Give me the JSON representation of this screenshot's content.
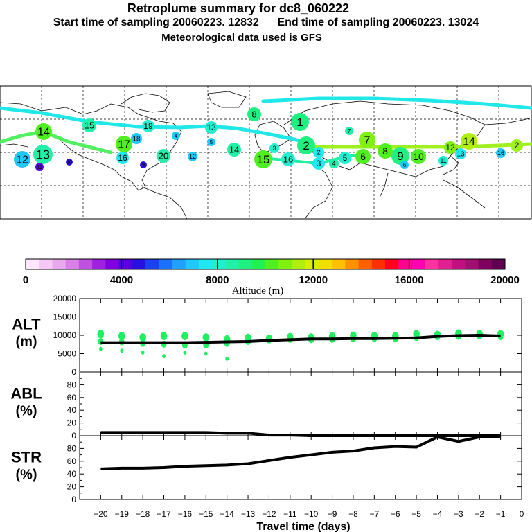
{
  "header": {
    "title": "Retroplume summary for dc8_060222",
    "subtitle": "Start time of sampling 20060223. 12832      End time of sampling 20060223. 13024",
    "met_line": "Meteorological data used is GFS"
  },
  "colorbar": {
    "label": "Altitude (m)",
    "ticks": [
      "0",
      "4000",
      "8000",
      "12000",
      "16000",
      "20000"
    ],
    "colors": [
      "#ffe6ff",
      "#f5c8f5",
      "#e8a8ee",
      "#d880e8",
      "#c050e0",
      "#a020e0",
      "#7f00e0",
      "#5a00e0",
      "#2a10e0",
      "#1a40f0",
      "#1a70ff",
      "#20a0ff",
      "#20c8ff",
      "#20e8f0",
      "#20f0d0",
      "#20f0a8",
      "#20f080",
      "#20f050",
      "#50f020",
      "#80f010",
      "#b0f010",
      "#d8f000",
      "#f0e000",
      "#ffc000",
      "#ff9000",
      "#ff6000",
      "#ff3000",
      "#ff0020",
      "#ff0090",
      "#ff00b0",
      "#ff30a0",
      "#e02090",
      "#c01080",
      "#a01070",
      "#800060",
      "#600050"
    ]
  },
  "map": {
    "trajectory_colors": [
      "#20e8e8",
      "#50f060",
      "#20f0a0",
      "#a0f020"
    ],
    "markers": [
      "2",
      "16",
      "14",
      "13",
      "12",
      "11",
      "10",
      "9",
      "8",
      "7",
      "6",
      "5",
      "4",
      "3",
      "2",
      "1",
      "16",
      "15",
      "14",
      "13",
      "12",
      "20",
      "19",
      "18",
      "17",
      "16",
      "15",
      "14",
      "13",
      "12",
      "11",
      "10",
      "9",
      "8",
      "7",
      "6",
      "5",
      "4",
      "3",
      "2",
      "1",
      "20",
      "10",
      "9",
      "8",
      "7",
      "6",
      "5",
      "4",
      "3",
      "2"
    ]
  },
  "chart_data": [
    {
      "type": "line",
      "panel": "ALT",
      "ylabel_lines": [
        "ALT",
        "(m)"
      ],
      "ylim": [
        0,
        20000
      ],
      "yticks": [
        "20000",
        "15000",
        "10000",
        "5000",
        "0"
      ],
      "x": [
        -20,
        -19,
        -18,
        -17,
        -16,
        -15,
        -14,
        -13,
        -12,
        -11,
        -10,
        -9,
        -8,
        -7,
        -6,
        -5,
        -4,
        -3,
        -2,
        -1
      ],
      "median": [
        8000,
        8000,
        8000,
        8000,
        8000,
        8100,
        8200,
        8300,
        8600,
        8800,
        9000,
        9000,
        9100,
        9100,
        9200,
        9300,
        9700,
        9900,
        10000,
        9800
      ],
      "point_color": "#20f060",
      "scatter": [
        {
          "x": -20,
          "y": [
            10300,
            8300,
            6300
          ]
        },
        {
          "x": -19,
          "y": [
            9800,
            8200,
            5800
          ]
        },
        {
          "x": -18,
          "y": [
            9400,
            7800,
            5300
          ]
        },
        {
          "x": -17,
          "y": [
            9800,
            7600,
            4300
          ]
        },
        {
          "x": -16,
          "y": [
            9800,
            7300,
            5300
          ]
        },
        {
          "x": -15,
          "y": [
            9400,
            7300,
            5000
          ]
        },
        {
          "x": -14,
          "y": [
            8900,
            7800,
            3600
          ]
        },
        {
          "x": -13,
          "y": [
            9300,
            8300
          ]
        },
        {
          "x": -12,
          "y": [
            9100,
            8700
          ]
        },
        {
          "x": -11,
          "y": [
            9500,
            8900
          ]
        },
        {
          "x": -10,
          "y": [
            9400,
            8800
          ]
        },
        {
          "x": -9,
          "y": [
            9700,
            8900
          ]
        },
        {
          "x": -8,
          "y": [
            9900,
            9000
          ]
        },
        {
          "x": -7,
          "y": [
            9800,
            9100
          ]
        },
        {
          "x": -6,
          "y": [
            9800,
            9000
          ]
        },
        {
          "x": -5,
          "y": [
            10300,
            9400
          ]
        },
        {
          "x": -4,
          "y": [
            10100,
            9600
          ]
        },
        {
          "x": -3,
          "y": [
            10500,
            9700
          ]
        },
        {
          "x": -2,
          "y": [
            10300,
            9800
          ]
        },
        {
          "x": -1,
          "y": [
            10300,
            9600
          ]
        }
      ]
    },
    {
      "type": "line",
      "panel": "ABL",
      "ylabel_lines": [
        "ABL",
        "(%)"
      ],
      "ylim": [
        0,
        100
      ],
      "yticks": [
        "80",
        "60",
        "40",
        "20",
        "0"
      ],
      "x": [
        -20,
        -19,
        -18,
        -17,
        -16,
        -15,
        -14,
        -13,
        -12,
        -11,
        -10,
        -9,
        -8,
        -7,
        -6,
        -5,
        -4,
        -3,
        -2,
        -1
      ],
      "values": [
        5,
        5,
        5,
        5,
        5,
        5,
        4,
        4,
        1,
        1,
        0,
        0,
        0,
        0,
        0,
        0,
        0,
        0,
        0,
        0
      ]
    },
    {
      "type": "line",
      "panel": "STR",
      "ylabel_lines": [
        "STR",
        "(%)"
      ],
      "ylim": [
        0,
        100
      ],
      "yticks": [
        "80",
        "60",
        "40",
        "20",
        "0"
      ],
      "x": [
        -20,
        -19,
        -18,
        -17,
        -16,
        -15,
        -14,
        -13,
        -12,
        -11,
        -10,
        -9,
        -8,
        -7,
        -6,
        -5,
        -4,
        -3,
        -2,
        -1
      ],
      "values": [
        48,
        49,
        49,
        50,
        52,
        53,
        54,
        56,
        61,
        66,
        70,
        74,
        76,
        81,
        83,
        82,
        98,
        91,
        98,
        99
      ],
      "xlabel": "Travel time (days)",
      "xticks": [
        "−20",
        "−19",
        "−18",
        "−17",
        "−16",
        "−15",
        "−14",
        "−13",
        "−12",
        "−11",
        "−10",
        "−9",
        "−8",
        "−7",
        "−6",
        "−5",
        "−4",
        "−3",
        "−2",
        "−1",
        "0"
      ]
    }
  ]
}
